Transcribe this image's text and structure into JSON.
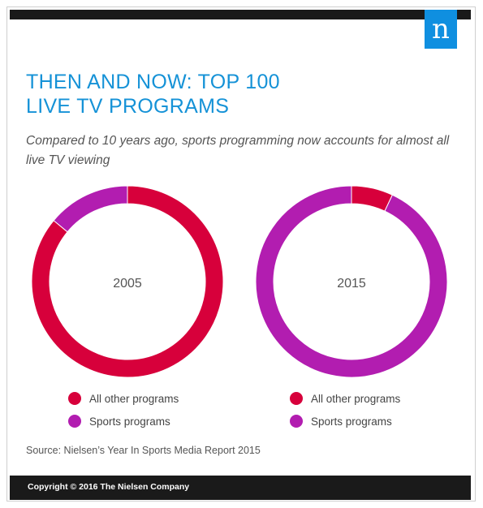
{
  "brand": {
    "logo_letter": "n",
    "logo_color": "#0f8fe0",
    "bar_color": "#1a1a1a"
  },
  "title_lines": [
    "THEN AND NOW: TOP 100",
    "LIVE TV PROGRAMS"
  ],
  "subtitle": "Compared to 10 years ago, sports programming now accounts for almost all live TV viewing",
  "colors": {
    "title": "#1592d7",
    "other": "#d7003b",
    "sports": "#b21db0"
  },
  "chart_data": [
    {
      "type": "pie",
      "center_label": "2005",
      "slices": [
        {
          "label": "All other programs",
          "value": 86,
          "color": "#d7003b"
        },
        {
          "label": "Sports programs",
          "value": 14,
          "color": "#b21db0"
        }
      ],
      "legend": [
        "All other programs",
        "Sports programs"
      ]
    },
    {
      "type": "pie",
      "center_label": "2015",
      "slices": [
        {
          "label": "All other programs",
          "value": 7,
          "color": "#d7003b"
        },
        {
          "label": "Sports programs",
          "value": 93,
          "color": "#b21db0"
        }
      ],
      "legend": [
        "All other programs",
        "Sports programs"
      ]
    }
  ],
  "source": "Source: Nielsen’s Year In Sports Media Report 2015",
  "footer": {
    "copyright": "Copyright © 2016 The Nielsen Company"
  }
}
